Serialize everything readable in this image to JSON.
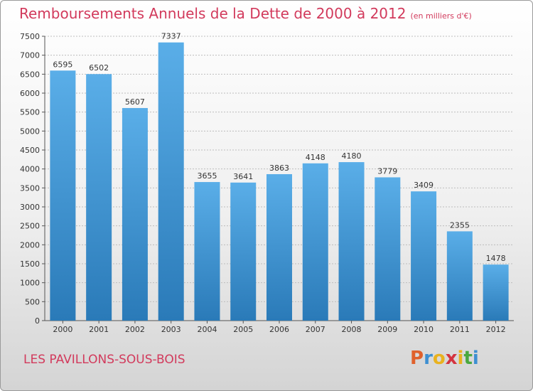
{
  "header": {
    "title": "Remboursements Annuels de la Dette de 2000 à 2012",
    "unit": "(en milliers d'€)"
  },
  "footer": {
    "commune": "LES PAVILLONS-SOUS-BOIS",
    "logo_letters": [
      "P",
      "r",
      "o",
      "x",
      "i",
      "t",
      "i"
    ],
    "logo_colors": [
      "#e0612c",
      "#3d8fd1",
      "#e9b21f",
      "#d4343f",
      "#e9b21f",
      "#4aa83f",
      "#3d8fd1"
    ]
  },
  "colors": {
    "title": "#d23a5c",
    "bar_top": "#5aaee8",
    "bar_bottom": "#2a7ab8",
    "grid": "#bdbdbd"
  },
  "chart_data": {
    "type": "bar",
    "title": "Remboursements Annuels de la Dette de 2000 à 2012",
    "categories": [
      "2000",
      "2001",
      "2002",
      "2003",
      "2004",
      "2005",
      "2006",
      "2007",
      "2008",
      "2009",
      "2010",
      "2011",
      "2012"
    ],
    "values": [
      6595,
      6502,
      5607,
      7337,
      3655,
      3641,
      3863,
      4148,
      4180,
      3779,
      3409,
      2355,
      1478
    ],
    "y_ticks": [
      0,
      500,
      1000,
      1500,
      2000,
      2500,
      3000,
      3500,
      4000,
      4500,
      5000,
      5500,
      6000,
      6500,
      7000,
      7500
    ],
    "ylim": [
      0,
      7500
    ],
    "grid": true,
    "legend": "none"
  }
}
